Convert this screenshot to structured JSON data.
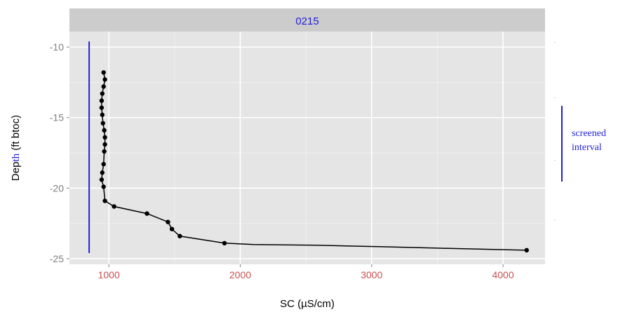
{
  "chart_data": {
    "type": "line",
    "panel_label": "0215",
    "xlabel": "SC (µS/cm)",
    "ylabel_part1": "Dep",
    "ylabel_part2": "th",
    "ylabel_part3": " (ft btoc)",
    "xlim": [
      700,
      4320
    ],
    "ylim": [
      -25.4,
      -8.9
    ],
    "x_ticks": [
      1000,
      2000,
      3000,
      4000
    ],
    "x_tick_labels": [
      "1000",
      "2000",
      "3000",
      "4000"
    ],
    "y_ticks": [
      -10,
      -15,
      -20,
      -25
    ],
    "y_tick_labels": [
      "-10",
      "-15",
      "-20",
      "-25"
    ],
    "grid": true,
    "series": [
      {
        "x": [
          960,
          970,
          960,
          950,
          945,
          945,
          950,
          955,
          965,
          970,
          970,
          965,
          960,
          950,
          945,
          960,
          970,
          1040,
          1290,
          1450,
          1480,
          1540,
          1880,
          2100,
          2580,
          3050,
          3500,
          3950,
          4180
        ],
        "y": [
          -11.8,
          -12.3,
          -12.8,
          -13.3,
          -13.8,
          -14.3,
          -14.8,
          -15.4,
          -15.9,
          -16.4,
          -16.9,
          -17.4,
          -18.3,
          -18.9,
          -19.4,
          -19.9,
          -20.9,
          -21.3,
          -21.8,
          -22.4,
          -22.9,
          -23.4,
          -23.9,
          -24.0,
          -24.05,
          -24.15,
          -24.25,
          -24.35,
          -24.4
        ],
        "markers": [
          true,
          true,
          true,
          true,
          true,
          true,
          true,
          true,
          true,
          true,
          true,
          true,
          true,
          true,
          true,
          true,
          true,
          true,
          true,
          true,
          true,
          true,
          true,
          false,
          false,
          false,
          false,
          false,
          true
        ]
      }
    ],
    "vertical_line": {
      "x": 850,
      "y": [
        -9.6,
        -24.6
      ]
    },
    "annotation": {
      "line1": "screened",
      "line2": "interval"
    },
    "colors": {
      "panel_bg": "#e5e5e5",
      "strip_bg": "#cccccc",
      "grid": "#ffffff",
      "data": "#000000",
      "blue": "#1f1fdb",
      "tick_text": "#808080",
      "x_tick_text": "#c85050"
    }
  }
}
